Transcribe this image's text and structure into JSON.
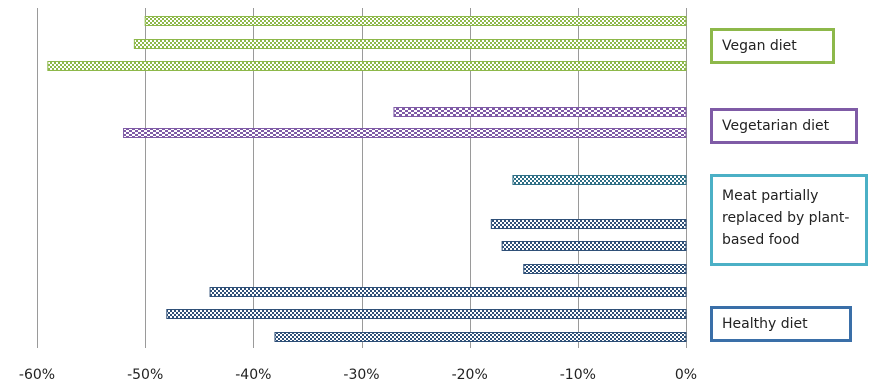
{
  "chart_data": {
    "type": "bar",
    "orientation": "horizontal",
    "x_ticks": [
      "-60%",
      "-50%",
      "-40%",
      "-30%",
      "-20%",
      "-10%",
      "0%"
    ],
    "xlim": [
      -60,
      0
    ],
    "grid": "vertical",
    "legend_placement": "right",
    "groups": [
      {
        "label": "Vegan diet",
        "color": "#8db84a",
        "pattern": "dots",
        "values": [
          -50,
          -51,
          -59
        ]
      },
      {
        "label": "Vegetarian diet",
        "color": "#7f5ba6",
        "pattern": "dashes",
        "values": [
          -27,
          -52
        ]
      },
      {
        "label": "Meat partially replaced by plant-based food",
        "color": "#3a8fa8",
        "pattern": "checker",
        "values": [
          -16
        ]
      },
      {
        "label": "Healthy diet",
        "color": "#2f5078",
        "pattern": "checker",
        "values": [
          -18,
          -17,
          -15,
          -44,
          -48,
          -38
        ]
      }
    ]
  }
}
